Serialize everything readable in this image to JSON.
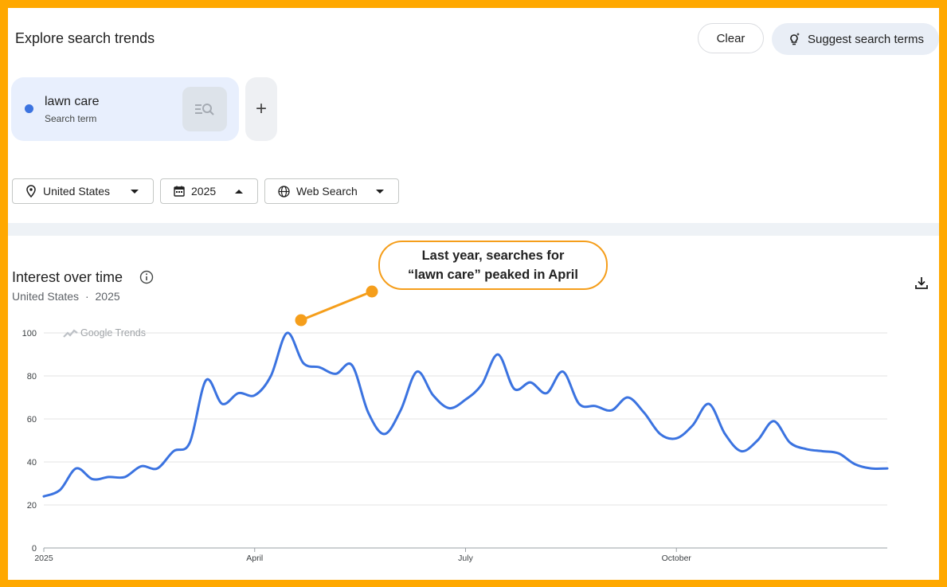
{
  "header": {
    "title": "Explore search trends",
    "clear_label": "Clear",
    "suggest_label": "Suggest search terms"
  },
  "term": {
    "name": "lawn care",
    "subtitle": "Search term",
    "color": "#3b73e0",
    "add_symbol": "+"
  },
  "filters": {
    "region": "United States",
    "period": "2025",
    "source": "Web Search"
  },
  "chart_section": {
    "title": "Interest over time",
    "region": "United States",
    "separator": "·",
    "period": "2025",
    "watermark": "Google Trends"
  },
  "annotation": {
    "line1": "Last year, searches for",
    "line2": "“lawn care” peaked in April",
    "color": "#f59e1b"
  },
  "chart_data": {
    "type": "line",
    "title": "Interest over time",
    "xlabel": "",
    "ylabel": "",
    "ylim": [
      0,
      100
    ],
    "yticks": [
      0,
      20,
      40,
      60,
      80,
      100
    ],
    "xticks": [
      {
        "label": "2025",
        "week": 0
      },
      {
        "label": "April",
        "week": 13
      },
      {
        "label": "July",
        "week": 26
      },
      {
        "label": "October",
        "week": 39
      }
    ],
    "grid": true,
    "series": [
      {
        "color": "#3b73e0",
        "values": [
          24,
          27,
          37,
          32,
          33,
          33,
          38,
          37,
          45,
          49,
          78,
          67,
          72,
          71,
          80,
          100,
          86,
          84,
          81,
          85,
          63,
          53,
          64,
          82,
          71,
          65,
          69,
          76,
          90,
          74,
          77,
          72,
          82,
          67,
          66,
          64,
          70,
          63,
          53,
          51,
          57,
          67,
          53,
          45,
          50,
          59,
          49,
          46,
          45,
          44,
          39,
          37,
          37
        ]
      }
    ]
  }
}
